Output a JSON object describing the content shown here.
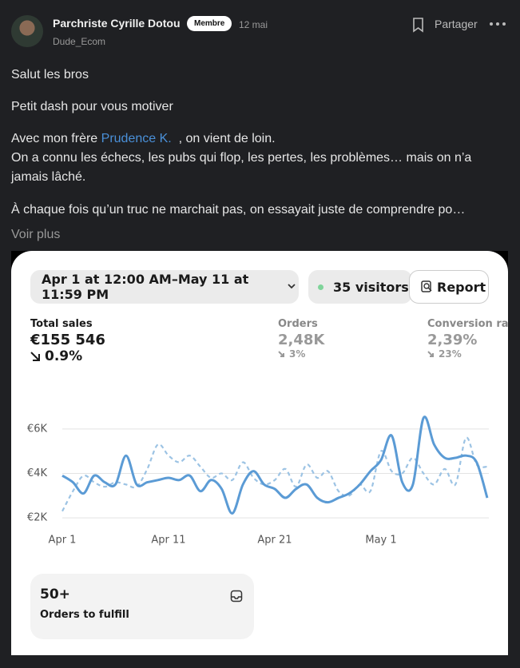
{
  "post": {
    "author": "Parchriste Cyrille Dotou",
    "badge": "Membre",
    "date": "12 mai",
    "handle": "Dude_Ecom",
    "share": "Partager",
    "paragraphs": [
      "Salut les bros",
      "Petit dash pour vous motiver"
    ],
    "brother_intro": "Avec mon frère",
    "mention": "Prudence K.",
    "brother_rest": ", on vient de loin.",
    "story": "On a connu les échecs, les pubs qui flop, les pertes, les problèmes… mais on n’a jamais lâché.",
    "truncated": "À chaque fois qu’un truc ne marchait pas, on essayait juste de comprendre po…",
    "more": "Voir plus"
  },
  "dashboard": {
    "date_range": "Apr 1 at 12:00 AM–May 11 at 11:59 PM",
    "visitors": "35 visitors",
    "report": "Report",
    "metrics": [
      {
        "label": "Total sales",
        "value": "€155 546",
        "change": "0.9%"
      },
      {
        "label": "Orders",
        "value": "2,48K",
        "change": "3%"
      },
      {
        "label": "Conversion rate",
        "value": "2,39%",
        "change": "23%"
      }
    ],
    "fulfill_count": "50+",
    "fulfill_label": "Orders to fulfill",
    "chart": {
      "type": "line",
      "categories": [
        "Apr 1",
        null,
        null,
        null,
        null,
        null,
        null,
        null,
        null,
        null,
        "Apr 11",
        null,
        null,
        null,
        null,
        null,
        null,
        null,
        null,
        null,
        "Apr 21",
        null,
        null,
        null,
        null,
        null,
        null,
        null,
        null,
        null,
        "May 1",
        null,
        null,
        null,
        null,
        null,
        null,
        null,
        null,
        null,
        null
      ],
      "series": [
        {
          "color": "#5b9bd5",
          "style": "solid",
          "values": [
            3900,
            3600,
            3100,
            3900,
            3600,
            3500,
            4800,
            3500,
            3600,
            3700,
            3800,
            3700,
            3900,
            3200,
            3700,
            3300,
            2200,
            3500,
            4100,
            3500,
            3300,
            2900,
            3300,
            3500,
            2900,
            2700,
            2900,
            3100,
            3500,
            4100,
            4600,
            5700,
            3600,
            3500,
            6500,
            5300,
            4700,
            4700,
            4800,
            4500,
            2900
          ]
        },
        {
          "color": "#9cc3e4",
          "style": "dashed",
          "values": [
            2300,
            3200,
            3900,
            3600,
            3400,
            3600,
            3500,
            3400,
            4200,
            5300,
            4800,
            4500,
            4800,
            4300,
            3800,
            4000,
            3700,
            4500,
            3800,
            3500,
            3700,
            4200,
            3400,
            4400,
            3800,
            4100,
            3200,
            3000,
            3500,
            3200,
            5000,
            4100,
            4000,
            4700,
            4000,
            3500,
            4200,
            3500,
            5600,
            4400,
            4300
          ]
        }
      ],
      "ylim": [
        1500,
        7000
      ],
      "yticks": [
        {
          "value": 2000,
          "label": "€2K"
        },
        {
          "value": 4000,
          "label": "€4K"
        },
        {
          "value": 6000,
          "label": "€6K"
        }
      ],
      "grid": true
    }
  }
}
